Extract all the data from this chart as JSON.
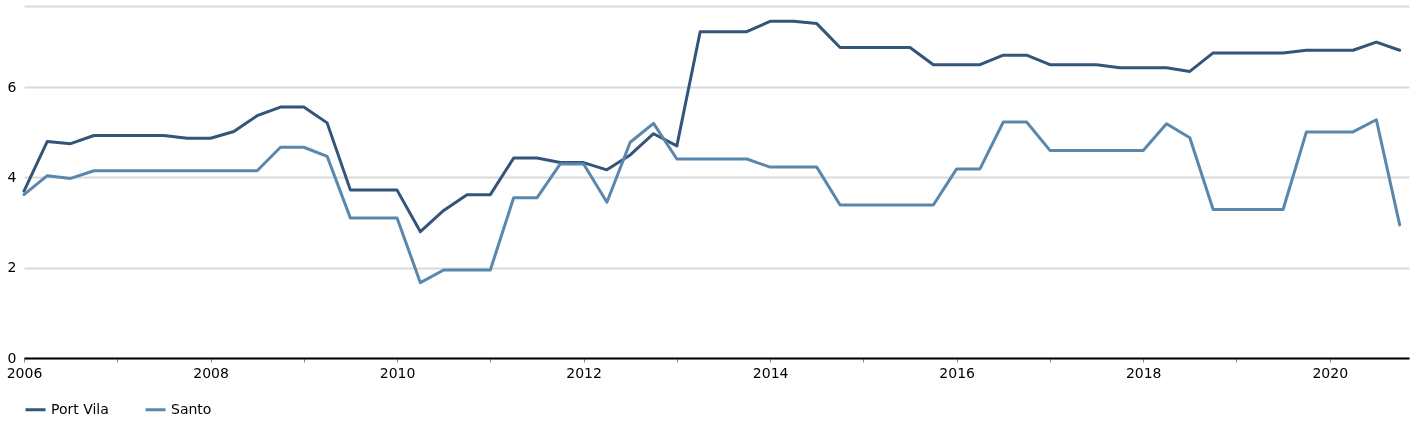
{
  "chart_data": {
    "type": "line",
    "x": [
      2006,
      2006.25,
      2006.5,
      2006.75,
      2007,
      2007.25,
      2007.5,
      2007.75,
      2008,
      2008.25,
      2008.5,
      2008.75,
      2009,
      2009.25,
      2009.5,
      2009.75,
      2010,
      2010.25,
      2010.5,
      2010.75,
      2011,
      2011.25,
      2011.5,
      2011.75,
      2012,
      2012.25,
      2012.5,
      2012.75,
      2013,
      2013.25,
      2013.5,
      2013.75,
      2014,
      2014.25,
      2014.5,
      2014.75,
      2015,
      2015.25,
      2015.5,
      2015.75,
      2016,
      2016.25,
      2016.5,
      2016.75,
      2017,
      2017.25,
      2017.5,
      2017.75,
      2018,
      2018.25,
      2018.5,
      2018.75,
      2019,
      2019.25,
      2019.5,
      2019.75,
      2020,
      2020.25,
      2020.5,
      2020.75
    ],
    "series": [
      {
        "name": "Port Vila",
        "color": "#34557a",
        "values": [
          3.7,
          4.8,
          4.75,
          4.93,
          4.93,
          4.93,
          4.93,
          4.87,
          4.87,
          5.02,
          5.37,
          5.56,
          5.56,
          5.21,
          3.72,
          3.72,
          3.72,
          2.8,
          3.27,
          3.62,
          3.62,
          4.43,
          4.43,
          4.33,
          4.33,
          4.17,
          4.5,
          4.97,
          4.7,
          7.23,
          7.23,
          7.23,
          7.46,
          7.46,
          7.41,
          6.88,
          6.88,
          6.88,
          6.88,
          6.5,
          6.5,
          6.5,
          6.71,
          6.71,
          6.5,
          6.5,
          6.5,
          6.43,
          6.43,
          6.43,
          6.35,
          6.76,
          6.76,
          6.76,
          6.76,
          6.82,
          6.82,
          6.82,
          7.0,
          6.82
        ]
      },
      {
        "name": "Santo",
        "color": "#5a88ad",
        "values": [
          3.62,
          4.04,
          3.98,
          4.15,
          4.15,
          4.15,
          4.15,
          4.15,
          4.15,
          4.15,
          4.15,
          4.67,
          4.67,
          4.47,
          3.1,
          3.1,
          3.1,
          1.67,
          1.95,
          1.95,
          1.95,
          3.55,
          3.55,
          4.3,
          4.3,
          3.45,
          4.78,
          5.2,
          4.41,
          4.41,
          4.41,
          4.41,
          4.23,
          4.23,
          4.23,
          3.39,
          3.39,
          3.39,
          3.39,
          3.39,
          4.19,
          4.19,
          5.23,
          5.23,
          4.6,
          4.6,
          4.6,
          4.6,
          4.6,
          5.19,
          4.88,
          3.29,
          3.29,
          3.29,
          3.29,
          5.01,
          5.01,
          5.01,
          5.28,
          2.95
        ]
      }
    ],
    "xlim": [
      2006,
      2020.85
    ],
    "xticks": [
      2006,
      {
        "value": 2007,
        "label": null
      },
      2008,
      {
        "value": 2009,
        "label": null
      },
      2010,
      {
        "value": 2011,
        "label": null
      },
      2012,
      {
        "value": 2013,
        "label": null
      },
      2014,
      {
        "value": 2015,
        "label": null
      },
      2016,
      {
        "value": 2017,
        "label": null
      },
      2018,
      {
        "value": 2019,
        "label": null
      },
      2020
    ],
    "ylim": [
      0,
      7.8
    ],
    "yticks": [
      0,
      2,
      4,
      6
    ],
    "grid": "y",
    "legend": "bottom",
    "line_style": "solid"
  }
}
